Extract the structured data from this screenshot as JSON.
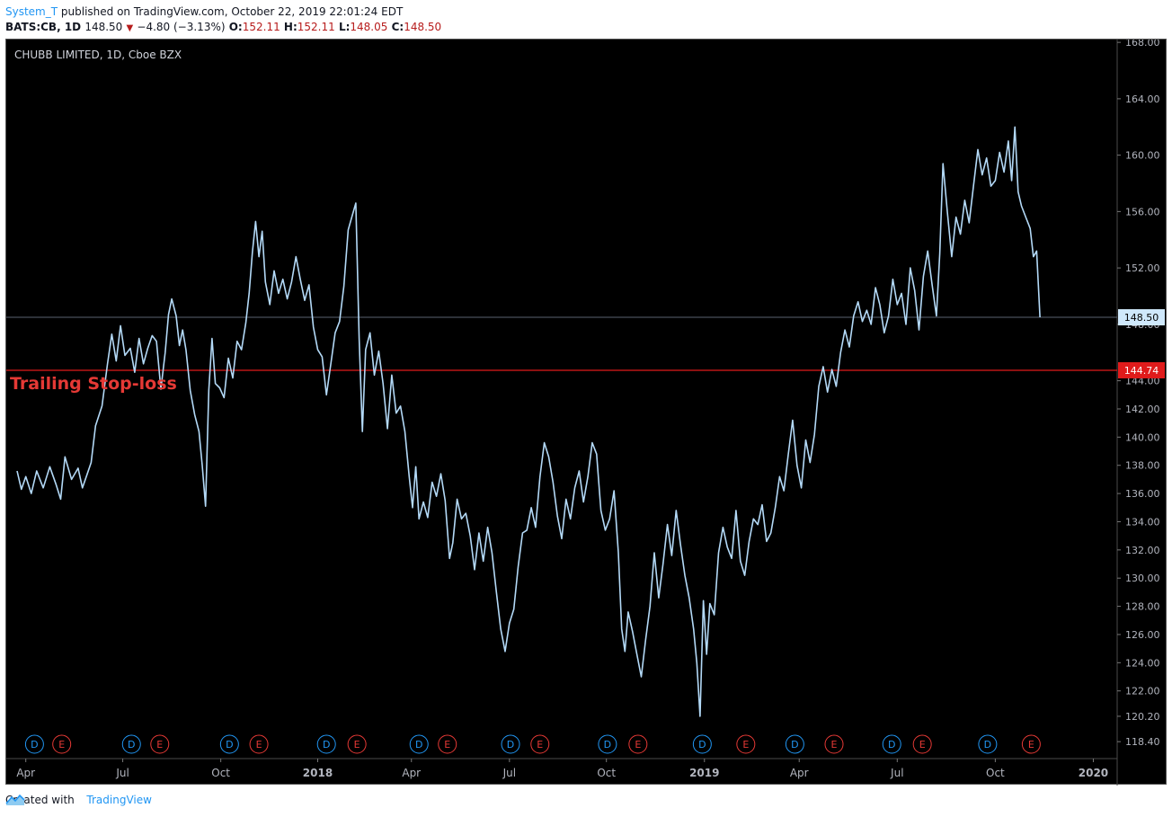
{
  "header": {
    "user": "System_T",
    "published": "published on TradingView.com, October 22, 2019 22:01:24 EDT",
    "symbol": "BATS:CB, 1D",
    "last": "148.50",
    "change": "−4.80 (−3.13%)",
    "o_label": "O:",
    "o_value": "152.11",
    "h_label": "H:",
    "h_value": "152.11",
    "l_label": "L:",
    "l_value": "148.05",
    "c_label": "C:",
    "c_value": "148.50"
  },
  "footer": {
    "created": "Created with",
    "brand": "TradingView"
  },
  "chart_data": {
    "type": "line",
    "title": "CHUBB LIMITED, 1D, Cboe BZX",
    "ylim": [
      117.2,
      168.2
    ],
    "y_ticks": [
      "118.40",
      "120.20",
      "122.00",
      "124.00",
      "126.00",
      "128.00",
      "130.00",
      "132.00",
      "134.00",
      "136.00",
      "138.00",
      "140.00",
      "142.00",
      "144.00",
      "148.00",
      "152.00",
      "156.00",
      "160.00",
      "164.00",
      "168.00"
    ],
    "x_ticks": [
      {
        "label": "Apr",
        "t": 0.008,
        "bold": false
      },
      {
        "label": "Jul",
        "t": 0.097,
        "bold": false
      },
      {
        "label": "Oct",
        "t": 0.187,
        "bold": false
      },
      {
        "label": "2018",
        "t": 0.276,
        "bold": true
      },
      {
        "label": "Apr",
        "t": 0.362,
        "bold": false
      },
      {
        "label": "Jul",
        "t": 0.452,
        "bold": false
      },
      {
        "label": "Oct",
        "t": 0.541,
        "bold": false
      },
      {
        "label": "2019",
        "t": 0.631,
        "bold": true
      },
      {
        "label": "Apr",
        "t": 0.718,
        "bold": false
      },
      {
        "label": "Jul",
        "t": 0.808,
        "bold": false
      },
      {
        "label": "Oct",
        "t": 0.898,
        "bold": false
      },
      {
        "label": "2020",
        "t": 0.988,
        "bold": true
      }
    ],
    "last_price": {
      "value": 148.5,
      "label": "148.50"
    },
    "stop_loss": {
      "value": 144.74,
      "label": "144.74",
      "text": "Trailing Stop-loss",
      "color": "#e53935"
    },
    "line_color": "#b3d9f7",
    "markers": [
      {
        "k": "D",
        "t": 0.016
      },
      {
        "k": "E",
        "t": 0.041
      },
      {
        "k": "D",
        "t": 0.105
      },
      {
        "k": "E",
        "t": 0.131
      },
      {
        "k": "D",
        "t": 0.195
      },
      {
        "k": "E",
        "t": 0.222
      },
      {
        "k": "D",
        "t": 0.284
      },
      {
        "k": "E",
        "t": 0.312
      },
      {
        "k": "D",
        "t": 0.369
      },
      {
        "k": "E",
        "t": 0.395
      },
      {
        "k": "D",
        "t": 0.453
      },
      {
        "k": "E",
        "t": 0.48
      },
      {
        "k": "D",
        "t": 0.542
      },
      {
        "k": "E",
        "t": 0.57
      },
      {
        "k": "D",
        "t": 0.629
      },
      {
        "k": "E",
        "t": 0.669
      },
      {
        "k": "D",
        "t": 0.714
      },
      {
        "k": "E",
        "t": 0.75
      },
      {
        "k": "D",
        "t": 0.803
      },
      {
        "k": "E",
        "t": 0.831
      },
      {
        "k": "D",
        "t": 0.891
      },
      {
        "k": "E",
        "t": 0.931
      }
    ],
    "series": [
      {
        "t": 0.0,
        "y": 137.6
      },
      {
        "t": 0.004,
        "y": 136.3
      },
      {
        "t": 0.008,
        "y": 137.2
      },
      {
        "t": 0.013,
        "y": 136.0
      },
      {
        "t": 0.018,
        "y": 137.6
      },
      {
        "t": 0.024,
        "y": 136.4
      },
      {
        "t": 0.03,
        "y": 137.9
      },
      {
        "t": 0.036,
        "y": 136.6
      },
      {
        "t": 0.04,
        "y": 135.6
      },
      {
        "t": 0.044,
        "y": 138.6
      },
      {
        "t": 0.05,
        "y": 137.0
      },
      {
        "t": 0.056,
        "y": 137.8
      },
      {
        "t": 0.06,
        "y": 136.4
      },
      {
        "t": 0.064,
        "y": 137.3
      },
      {
        "t": 0.068,
        "y": 138.2
      },
      {
        "t": 0.072,
        "y": 140.8
      },
      {
        "t": 0.078,
        "y": 142.2
      },
      {
        "t": 0.083,
        "y": 145.2
      },
      {
        "t": 0.087,
        "y": 147.3
      },
      {
        "t": 0.091,
        "y": 145.4
      },
      {
        "t": 0.095,
        "y": 147.9
      },
      {
        "t": 0.099,
        "y": 145.8
      },
      {
        "t": 0.104,
        "y": 146.3
      },
      {
        "t": 0.108,
        "y": 144.6
      },
      {
        "t": 0.112,
        "y": 147.0
      },
      {
        "t": 0.116,
        "y": 145.2
      },
      {
        "t": 0.12,
        "y": 146.3
      },
      {
        "t": 0.124,
        "y": 147.2
      },
      {
        "t": 0.128,
        "y": 146.8
      },
      {
        "t": 0.132,
        "y": 143.4
      },
      {
        "t": 0.136,
        "y": 146.0
      },
      {
        "t": 0.139,
        "y": 148.7
      },
      {
        "t": 0.142,
        "y": 149.8
      },
      {
        "t": 0.146,
        "y": 148.6
      },
      {
        "t": 0.149,
        "y": 146.5
      },
      {
        "t": 0.152,
        "y": 147.6
      },
      {
        "t": 0.155,
        "y": 146.2
      },
      {
        "t": 0.159,
        "y": 143.3
      },
      {
        "t": 0.163,
        "y": 141.6
      },
      {
        "t": 0.167,
        "y": 140.4
      },
      {
        "t": 0.17,
        "y": 138.0
      },
      {
        "t": 0.173,
        "y": 135.1
      },
      {
        "t": 0.176,
        "y": 143.3
      },
      {
        "t": 0.179,
        "y": 147.0
      },
      {
        "t": 0.182,
        "y": 143.8
      },
      {
        "t": 0.186,
        "y": 143.5
      },
      {
        "t": 0.19,
        "y": 142.8
      },
      {
        "t": 0.194,
        "y": 145.6
      },
      {
        "t": 0.198,
        "y": 144.2
      },
      {
        "t": 0.202,
        "y": 146.8
      },
      {
        "t": 0.206,
        "y": 146.2
      },
      {
        "t": 0.21,
        "y": 148.1
      },
      {
        "t": 0.213,
        "y": 150.2
      },
      {
        "t": 0.216,
        "y": 153.1
      },
      {
        "t": 0.219,
        "y": 155.3
      },
      {
        "t": 0.222,
        "y": 152.8
      },
      {
        "t": 0.225,
        "y": 154.6
      },
      {
        "t": 0.228,
        "y": 151.0
      },
      {
        "t": 0.232,
        "y": 149.4
      },
      {
        "t": 0.236,
        "y": 151.8
      },
      {
        "t": 0.24,
        "y": 150.2
      },
      {
        "t": 0.244,
        "y": 151.2
      },
      {
        "t": 0.248,
        "y": 149.8
      },
      {
        "t": 0.252,
        "y": 151.0
      },
      {
        "t": 0.256,
        "y": 152.8
      },
      {
        "t": 0.26,
        "y": 151.2
      },
      {
        "t": 0.264,
        "y": 149.7
      },
      {
        "t": 0.268,
        "y": 150.8
      },
      {
        "t": 0.272,
        "y": 147.8
      },
      {
        "t": 0.276,
        "y": 146.2
      },
      {
        "t": 0.28,
        "y": 145.7
      },
      {
        "t": 0.284,
        "y": 143.0
      },
      {
        "t": 0.288,
        "y": 145.2
      },
      {
        "t": 0.292,
        "y": 147.4
      },
      {
        "t": 0.296,
        "y": 148.2
      },
      {
        "t": 0.3,
        "y": 150.7
      },
      {
        "t": 0.304,
        "y": 154.7
      },
      {
        "t": 0.308,
        "y": 155.8
      },
      {
        "t": 0.311,
        "y": 156.6
      },
      {
        "t": 0.314,
        "y": 147.0
      },
      {
        "t": 0.317,
        "y": 140.4
      },
      {
        "t": 0.32,
        "y": 146.2
      },
      {
        "t": 0.324,
        "y": 147.4
      },
      {
        "t": 0.328,
        "y": 144.4
      },
      {
        "t": 0.332,
        "y": 146.1
      },
      {
        "t": 0.336,
        "y": 143.8
      },
      {
        "t": 0.34,
        "y": 140.6
      },
      {
        "t": 0.344,
        "y": 144.4
      },
      {
        "t": 0.348,
        "y": 141.7
      },
      {
        "t": 0.352,
        "y": 142.2
      },
      {
        "t": 0.356,
        "y": 140.4
      },
      {
        "t": 0.36,
        "y": 137.2
      },
      {
        "t": 0.363,
        "y": 135.0
      },
      {
        "t": 0.366,
        "y": 137.9
      },
      {
        "t": 0.369,
        "y": 134.2
      },
      {
        "t": 0.373,
        "y": 135.4
      },
      {
        "t": 0.377,
        "y": 134.3
      },
      {
        "t": 0.381,
        "y": 136.8
      },
      {
        "t": 0.385,
        "y": 135.8
      },
      {
        "t": 0.389,
        "y": 137.4
      },
      {
        "t": 0.393,
        "y": 135.5
      },
      {
        "t": 0.397,
        "y": 131.4
      },
      {
        "t": 0.4,
        "y": 132.5
      },
      {
        "t": 0.404,
        "y": 135.6
      },
      {
        "t": 0.408,
        "y": 134.2
      },
      {
        "t": 0.412,
        "y": 134.6
      },
      {
        "t": 0.416,
        "y": 133.0
      },
      {
        "t": 0.42,
        "y": 130.6
      },
      {
        "t": 0.424,
        "y": 133.2
      },
      {
        "t": 0.428,
        "y": 131.2
      },
      {
        "t": 0.432,
        "y": 133.6
      },
      {
        "t": 0.436,
        "y": 131.8
      },
      {
        "t": 0.44,
        "y": 129.0
      },
      {
        "t": 0.444,
        "y": 126.4
      },
      {
        "t": 0.448,
        "y": 124.8
      },
      {
        "t": 0.452,
        "y": 126.8
      },
      {
        "t": 0.456,
        "y": 127.8
      },
      {
        "t": 0.46,
        "y": 130.8
      },
      {
        "t": 0.464,
        "y": 133.2
      },
      {
        "t": 0.468,
        "y": 133.4
      },
      {
        "t": 0.472,
        "y": 135.0
      },
      {
        "t": 0.476,
        "y": 133.6
      },
      {
        "t": 0.48,
        "y": 137.2
      },
      {
        "t": 0.484,
        "y": 139.6
      },
      {
        "t": 0.488,
        "y": 138.6
      },
      {
        "t": 0.492,
        "y": 136.8
      },
      {
        "t": 0.496,
        "y": 134.4
      },
      {
        "t": 0.5,
        "y": 132.8
      },
      {
        "t": 0.504,
        "y": 135.6
      },
      {
        "t": 0.508,
        "y": 134.2
      },
      {
        "t": 0.512,
        "y": 136.4
      },
      {
        "t": 0.516,
        "y": 137.6
      },
      {
        "t": 0.52,
        "y": 135.4
      },
      {
        "t": 0.524,
        "y": 137.2
      },
      {
        "t": 0.528,
        "y": 139.6
      },
      {
        "t": 0.532,
        "y": 138.8
      },
      {
        "t": 0.536,
        "y": 134.8
      },
      {
        "t": 0.54,
        "y": 133.4
      },
      {
        "t": 0.544,
        "y": 134.2
      },
      {
        "t": 0.548,
        "y": 136.2
      },
      {
        "t": 0.552,
        "y": 131.8
      },
      {
        "t": 0.555,
        "y": 126.4
      },
      {
        "t": 0.558,
        "y": 124.8
      },
      {
        "t": 0.561,
        "y": 127.6
      },
      {
        "t": 0.565,
        "y": 126.2
      },
      {
        "t": 0.569,
        "y": 124.6
      },
      {
        "t": 0.573,
        "y": 123.0
      },
      {
        "t": 0.577,
        "y": 125.6
      },
      {
        "t": 0.581,
        "y": 128.0
      },
      {
        "t": 0.585,
        "y": 131.8
      },
      {
        "t": 0.589,
        "y": 128.6
      },
      {
        "t": 0.593,
        "y": 131.0
      },
      {
        "t": 0.597,
        "y": 133.8
      },
      {
        "t": 0.601,
        "y": 131.6
      },
      {
        "t": 0.605,
        "y": 134.8
      },
      {
        "t": 0.609,
        "y": 132.4
      },
      {
        "t": 0.613,
        "y": 130.2
      },
      {
        "t": 0.617,
        "y": 128.6
      },
      {
        "t": 0.621,
        "y": 126.4
      },
      {
        "t": 0.624,
        "y": 124.0
      },
      {
        "t": 0.627,
        "y": 120.2
      },
      {
        "t": 0.63,
        "y": 128.4
      },
      {
        "t": 0.633,
        "y": 124.6
      },
      {
        "t": 0.636,
        "y": 128.2
      },
      {
        "t": 0.64,
        "y": 127.4
      },
      {
        "t": 0.644,
        "y": 131.8
      },
      {
        "t": 0.648,
        "y": 133.6
      },
      {
        "t": 0.652,
        "y": 132.2
      },
      {
        "t": 0.656,
        "y": 131.4
      },
      {
        "t": 0.66,
        "y": 134.8
      },
      {
        "t": 0.664,
        "y": 131.2
      },
      {
        "t": 0.668,
        "y": 130.2
      },
      {
        "t": 0.672,
        "y": 132.6
      },
      {
        "t": 0.676,
        "y": 134.2
      },
      {
        "t": 0.68,
        "y": 133.8
      },
      {
        "t": 0.684,
        "y": 135.2
      },
      {
        "t": 0.688,
        "y": 132.6
      },
      {
        "t": 0.692,
        "y": 133.2
      },
      {
        "t": 0.696,
        "y": 135.0
      },
      {
        "t": 0.7,
        "y": 137.2
      },
      {
        "t": 0.704,
        "y": 136.2
      },
      {
        "t": 0.708,
        "y": 138.8
      },
      {
        "t": 0.712,
        "y": 141.2
      },
      {
        "t": 0.716,
        "y": 138.0
      },
      {
        "t": 0.72,
        "y": 136.4
      },
      {
        "t": 0.724,
        "y": 139.8
      },
      {
        "t": 0.728,
        "y": 138.2
      },
      {
        "t": 0.732,
        "y": 140.2
      },
      {
        "t": 0.736,
        "y": 143.6
      },
      {
        "t": 0.74,
        "y": 145.0
      },
      {
        "t": 0.744,
        "y": 143.2
      },
      {
        "t": 0.748,
        "y": 144.8
      },
      {
        "t": 0.752,
        "y": 143.6
      },
      {
        "t": 0.756,
        "y": 146.0
      },
      {
        "t": 0.76,
        "y": 147.6
      },
      {
        "t": 0.764,
        "y": 146.4
      },
      {
        "t": 0.768,
        "y": 148.6
      },
      {
        "t": 0.772,
        "y": 149.6
      },
      {
        "t": 0.776,
        "y": 148.2
      },
      {
        "t": 0.78,
        "y": 149.0
      },
      {
        "t": 0.784,
        "y": 148.0
      },
      {
        "t": 0.788,
        "y": 150.6
      },
      {
        "t": 0.792,
        "y": 149.4
      },
      {
        "t": 0.796,
        "y": 147.4
      },
      {
        "t": 0.8,
        "y": 148.6
      },
      {
        "t": 0.804,
        "y": 151.2
      },
      {
        "t": 0.808,
        "y": 149.4
      },
      {
        "t": 0.812,
        "y": 150.2
      },
      {
        "t": 0.816,
        "y": 148.0
      },
      {
        "t": 0.82,
        "y": 152.0
      },
      {
        "t": 0.824,
        "y": 150.4
      },
      {
        "t": 0.828,
        "y": 147.6
      },
      {
        "t": 0.832,
        "y": 151.4
      },
      {
        "t": 0.836,
        "y": 153.2
      },
      {
        "t": 0.84,
        "y": 150.8
      },
      {
        "t": 0.844,
        "y": 148.6
      },
      {
        "t": 0.847,
        "y": 153.0
      },
      {
        "t": 0.85,
        "y": 159.4
      },
      {
        "t": 0.854,
        "y": 156.0
      },
      {
        "t": 0.858,
        "y": 152.8
      },
      {
        "t": 0.862,
        "y": 155.6
      },
      {
        "t": 0.866,
        "y": 154.4
      },
      {
        "t": 0.87,
        "y": 156.8
      },
      {
        "t": 0.874,
        "y": 155.2
      },
      {
        "t": 0.878,
        "y": 157.8
      },
      {
        "t": 0.882,
        "y": 160.4
      },
      {
        "t": 0.886,
        "y": 158.6
      },
      {
        "t": 0.89,
        "y": 159.8
      },
      {
        "t": 0.894,
        "y": 157.8
      },
      {
        "t": 0.898,
        "y": 158.2
      },
      {
        "t": 0.902,
        "y": 160.2
      },
      {
        "t": 0.906,
        "y": 158.8
      },
      {
        "t": 0.91,
        "y": 161.0
      },
      {
        "t": 0.913,
        "y": 158.2
      },
      {
        "t": 0.916,
        "y": 162.0
      },
      {
        "t": 0.919,
        "y": 157.4
      },
      {
        "t": 0.922,
        "y": 156.4
      },
      {
        "t": 0.926,
        "y": 155.6
      },
      {
        "t": 0.93,
        "y": 154.8
      },
      {
        "t": 0.933,
        "y": 152.8
      },
      {
        "t": 0.936,
        "y": 153.2
      },
      {
        "t": 0.939,
        "y": 148.5
      }
    ]
  }
}
